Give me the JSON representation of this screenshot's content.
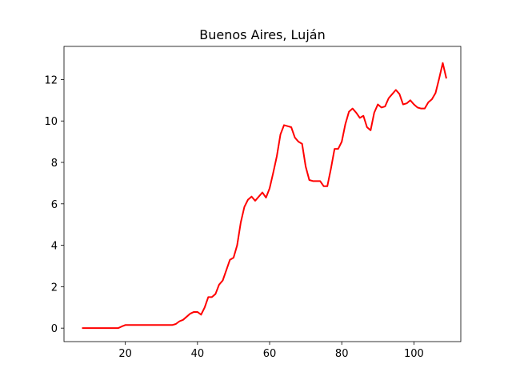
{
  "chart_data": {
    "type": "line",
    "title": "Buenos Aires, Luján",
    "xlabel": "",
    "ylabel": "",
    "xlim": [
      3,
      113
    ],
    "ylim": [
      -0.65,
      13.6
    ],
    "x_ticks": [
      20,
      40,
      60,
      80,
      100
    ],
    "y_ticks": [
      0,
      2,
      4,
      6,
      8,
      10,
      12
    ],
    "grid": false,
    "series": [
      {
        "color": "#ff0000",
        "x": [
          8,
          9,
          10,
          11,
          12,
          13,
          14,
          15,
          16,
          17,
          18,
          19,
          20,
          21,
          22,
          23,
          24,
          25,
          26,
          27,
          28,
          29,
          30,
          31,
          32,
          33,
          34,
          35,
          36,
          37,
          38,
          39,
          40,
          41,
          42,
          43,
          44,
          45,
          46,
          47,
          48,
          49,
          50,
          51,
          52,
          53,
          54,
          55,
          56,
          57,
          58,
          59,
          60,
          61,
          62,
          63,
          64,
          65,
          66,
          67,
          68,
          69,
          70,
          71,
          72,
          73,
          74,
          75,
          76,
          77,
          78,
          79,
          80,
          81,
          82,
          83,
          84,
          85,
          86,
          87,
          88,
          89,
          90,
          91,
          92,
          93,
          94,
          95,
          96,
          97,
          98,
          99,
          100,
          101,
          102,
          103,
          104,
          105,
          106,
          107,
          108,
          109
        ],
        "y": [
          0,
          0,
          0,
          0,
          0,
          0,
          0,
          0,
          0,
          0,
          0,
          0.08,
          0.15,
          0.15,
          0.15,
          0.15,
          0.15,
          0.15,
          0.15,
          0.15,
          0.15,
          0.15,
          0.15,
          0.15,
          0.15,
          0.15,
          0.2,
          0.33,
          0.4,
          0.55,
          0.7,
          0.78,
          0.78,
          0.65,
          1,
          1.5,
          1.5,
          1.65,
          2.1,
          2.3,
          2.8,
          3.3,
          3.4,
          4,
          5.1,
          5.85,
          6.2,
          6.35,
          6.15,
          6.35,
          6.55,
          6.3,
          6.75,
          7.5,
          8.3,
          9.35,
          9.8,
          9.75,
          9.7,
          9.2,
          9,
          8.9,
          7.8,
          7.15,
          7.1,
          7.1,
          7.1,
          6.85,
          6.85,
          7.7,
          8.65,
          8.65,
          9,
          9.85,
          10.45,
          10.6,
          10.4,
          10.15,
          10.25,
          9.7,
          9.55,
          10.4,
          10.8,
          10.65,
          10.7,
          11.1,
          11.3,
          11.5,
          11.3,
          10.8,
          10.85,
          11,
          10.8,
          10.65,
          10.6,
          10.6,
          10.9,
          11.05,
          11.35,
          12.05,
          12.8,
          12.05
        ]
      }
    ]
  }
}
